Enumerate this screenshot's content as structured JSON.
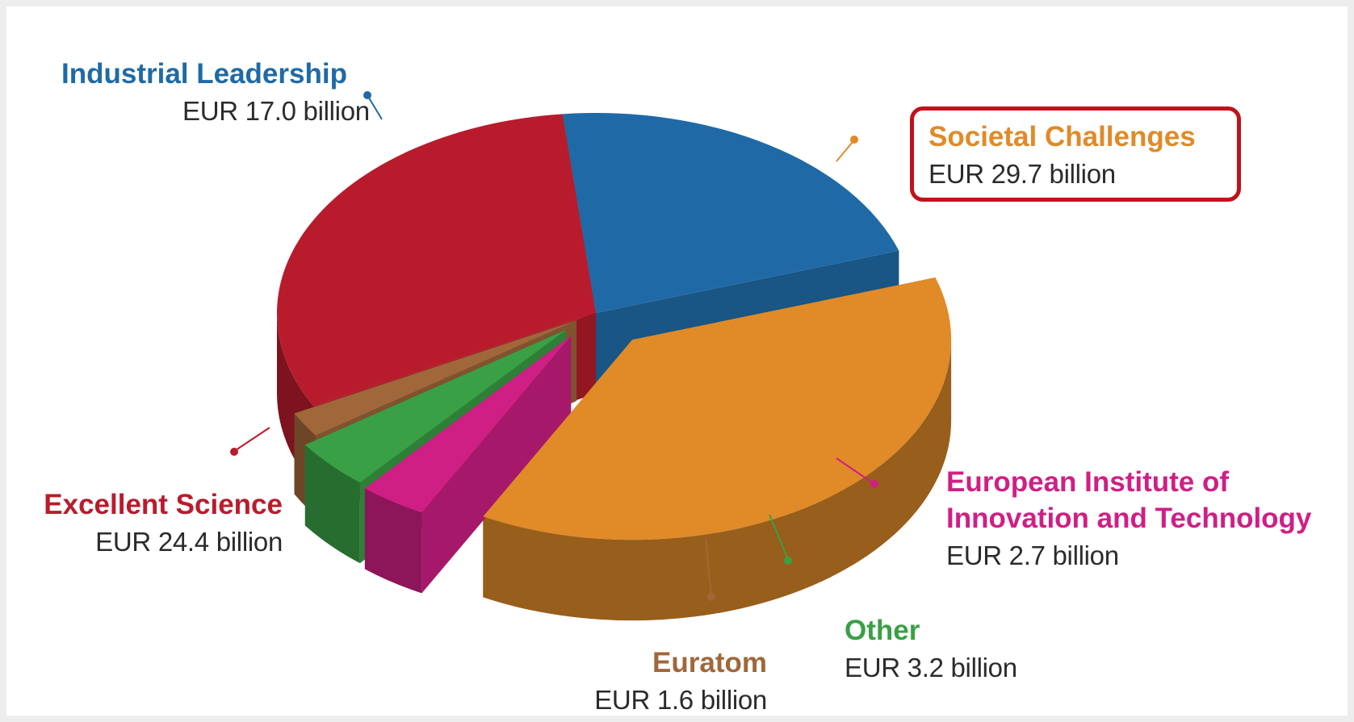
{
  "chart_data": {
    "type": "pie",
    "title": "",
    "unit": "EUR billion",
    "slices": [
      {
        "name": "Industrial Leadership",
        "value": 17.0,
        "value_label": "EUR 17.0 billion",
        "color": "#1f6aa6"
      },
      {
        "name": "Societal Challenges",
        "value": 29.7,
        "value_label": "EUR 29.7 billion",
        "color": "#e08a28"
      },
      {
        "name": "European Institute of Innovation and Technology",
        "value": 2.7,
        "value_label": "EUR 2.7 billion",
        "color": "#cf1f84"
      },
      {
        "name": "Other",
        "value": 3.2,
        "value_label": "EUR 3.2 billion",
        "color": "#39a045"
      },
      {
        "name": "Euratom",
        "value": 1.6,
        "value_label": "EUR 1.6 billion",
        "color": "#a0673a"
      },
      {
        "name": "Excellent Science",
        "value": 24.4,
        "value_label": "EUR 24.4 billion",
        "color": "#b81c2c"
      }
    ],
    "highlighted": "Societal Challenges",
    "exploded": [
      "Societal Challenges",
      "European Institute of Innovation and Technology",
      "Other",
      "Euratom"
    ],
    "style": "3d"
  },
  "labels": {
    "industrial": {
      "name": "Industrial Leadership",
      "value": "EUR 17.0 billion"
    },
    "societal": {
      "name": "Societal Challenges",
      "value": "EUR 29.7 billion"
    },
    "eit": {
      "name_line1": "European Institute of",
      "name_line2": "Innovation and Technology",
      "value": "EUR 2.7 billion"
    },
    "other": {
      "name": "Other",
      "value": "EUR 3.2 billion"
    },
    "euratom": {
      "name": "Euratom",
      "value": "EUR 1.6 billion"
    },
    "excellent": {
      "name": "Excellent Science",
      "value": "EUR 24.4 billion"
    }
  }
}
